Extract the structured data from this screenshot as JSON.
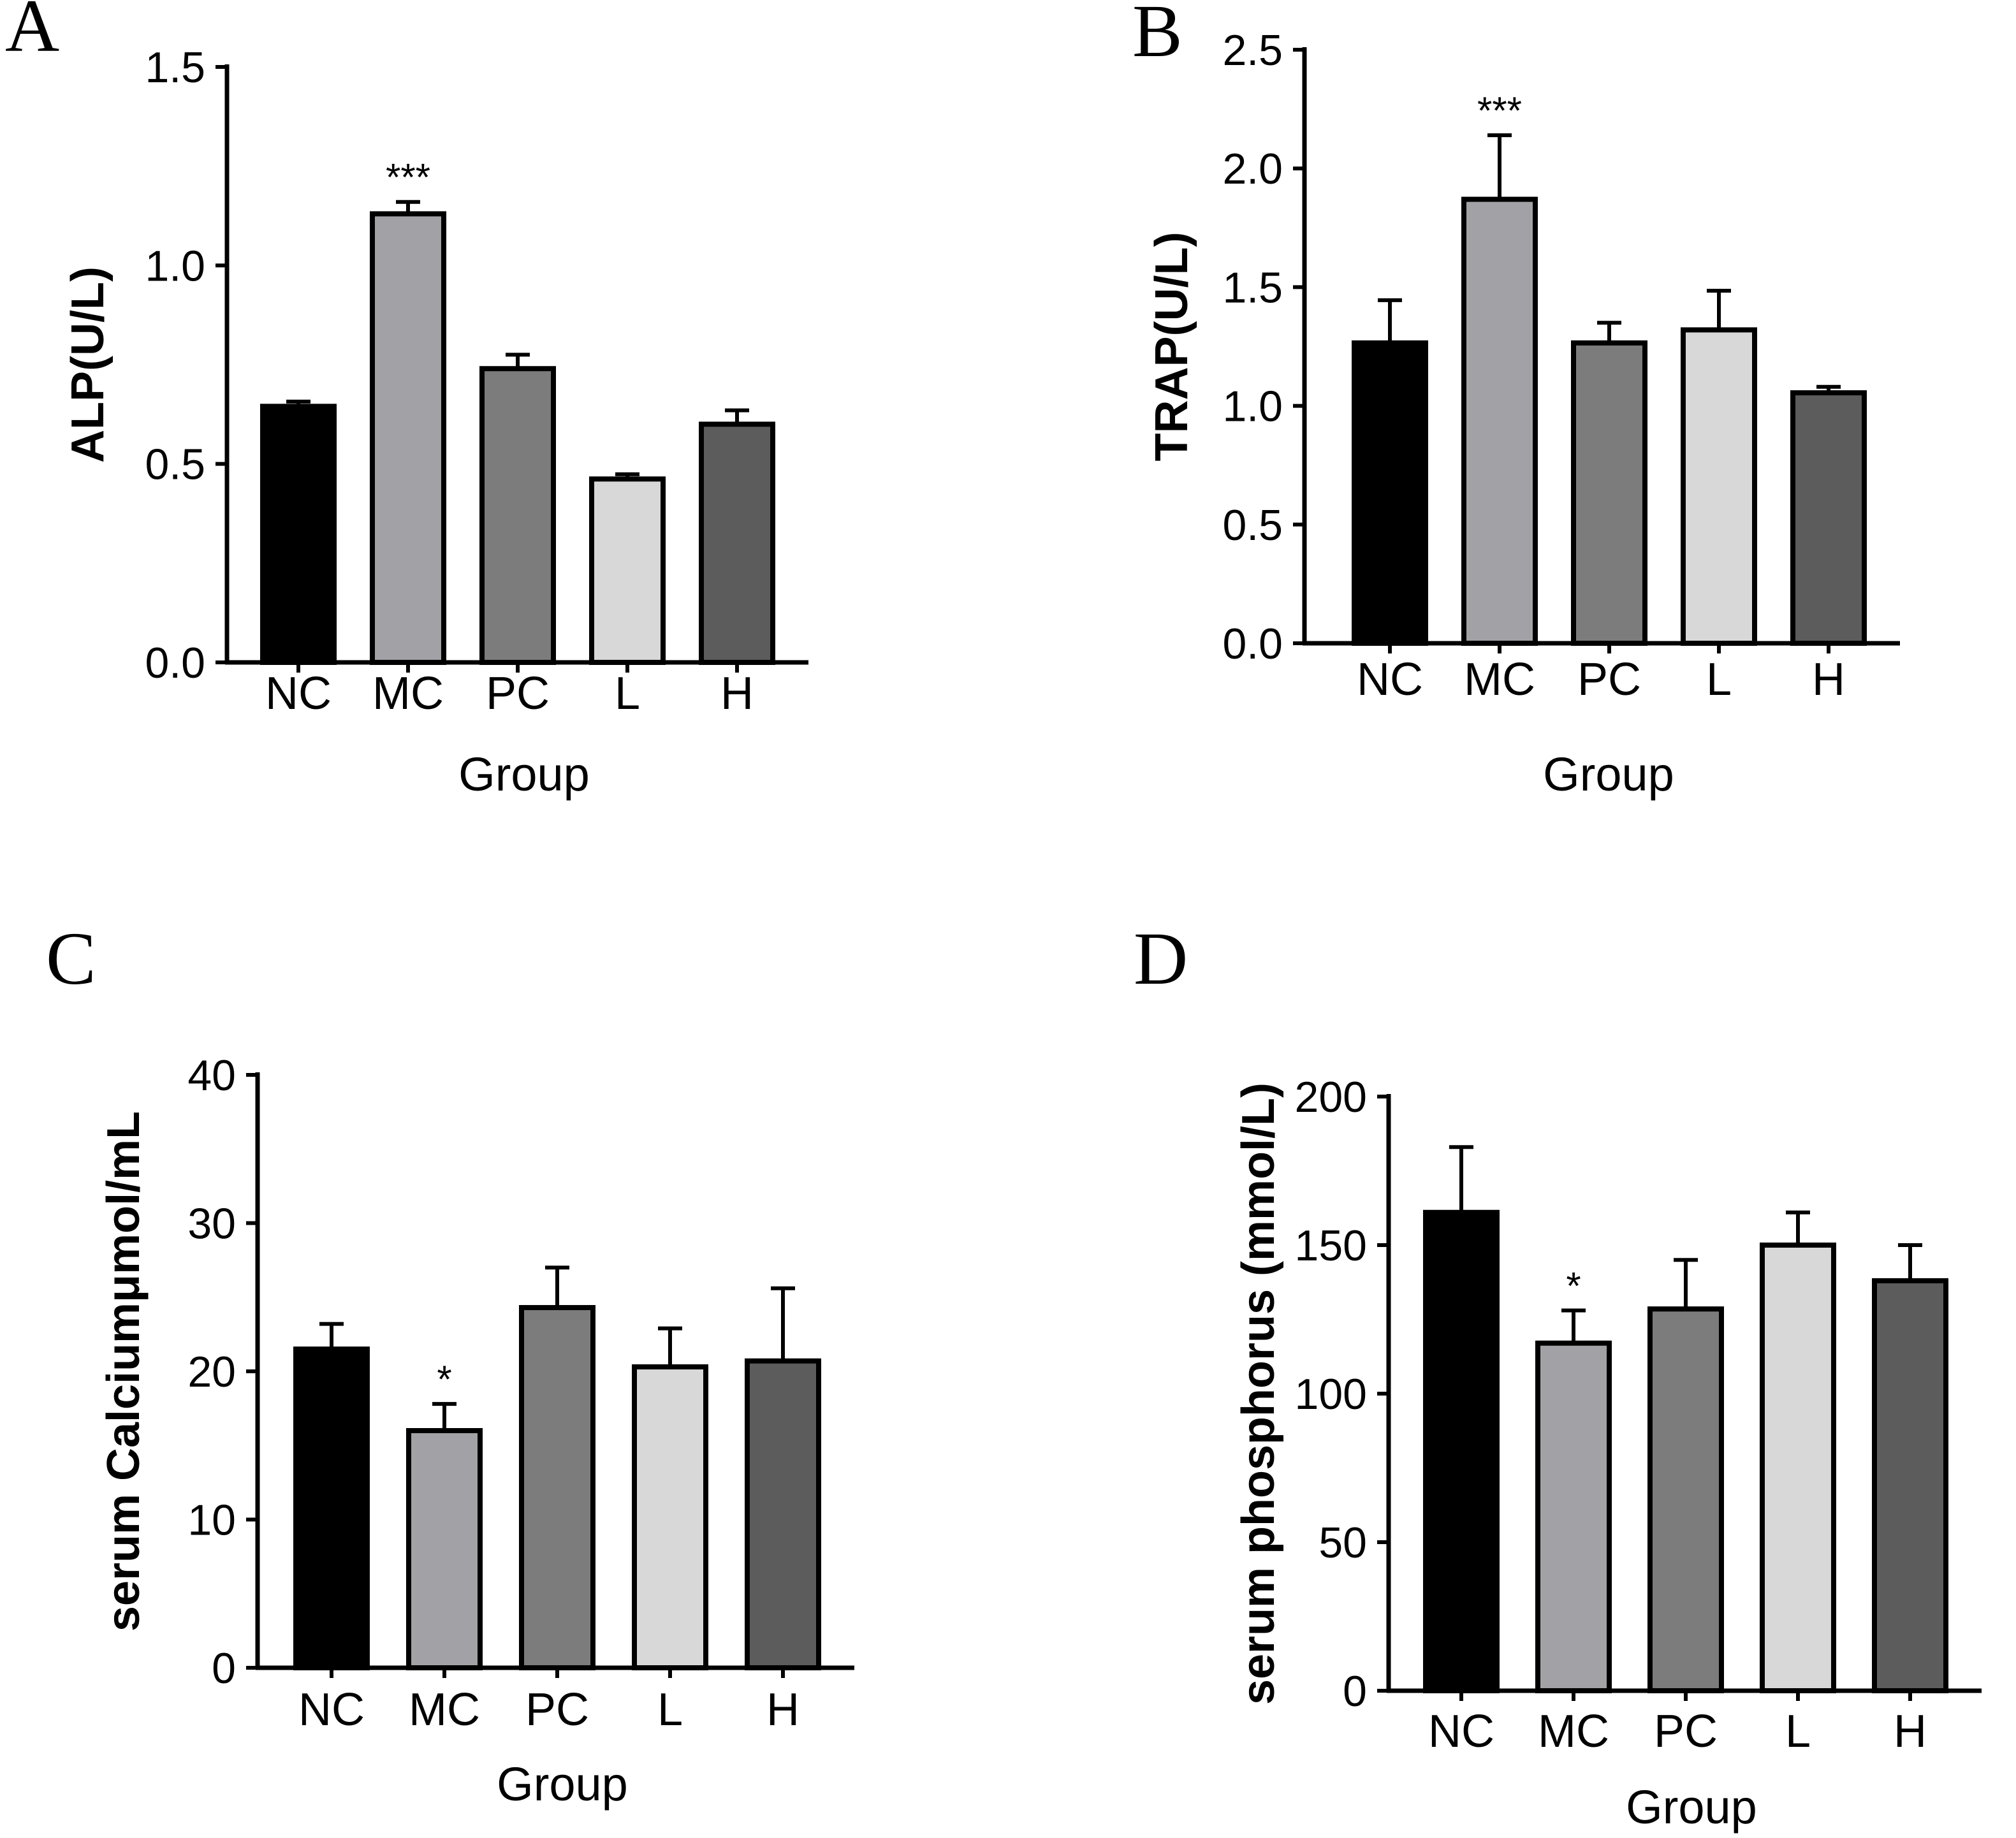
{
  "panels": [
    {
      "label": "A",
      "chart_data": {
        "type": "bar",
        "categories": [
          "NC",
          "MC",
          "PC",
          "L",
          "H"
        ],
        "values": [
          0.645,
          1.13,
          0.74,
          0.462,
          0.6
        ],
        "errors": [
          0.012,
          0.03,
          0.035,
          0.012,
          0.035
        ],
        "significance": [
          "",
          "***",
          "",
          "",
          ""
        ],
        "colors": [
          "#000000",
          "#a1a1a6",
          "#7c7c7c",
          "#d8d8d8",
          "#5c5c5c"
        ],
        "title": "",
        "xlabel": "Group",
        "ylabel": "ALP(U/L)",
        "ylim": [
          0,
          1.5
        ],
        "yticks": [
          0.0,
          0.5,
          1.0,
          1.5
        ],
        "ytick_labels": [
          "0.0",
          "0.5",
          "1.0",
          "1.5"
        ]
      }
    },
    {
      "label": "B",
      "chart_data": {
        "type": "bar",
        "categories": [
          "NC",
          "MC",
          "PC",
          "L",
          "H"
        ],
        "values": [
          1.265,
          1.87,
          1.265,
          1.32,
          1.055
        ],
        "errors": [
          0.18,
          0.27,
          0.085,
          0.165,
          0.025
        ],
        "significance": [
          "",
          "***",
          "",
          "",
          ""
        ],
        "colors": [
          "#000000",
          "#a1a1a6",
          "#7c7c7c",
          "#d8d8d8",
          "#5c5c5c"
        ],
        "title": "",
        "xlabel": "Group",
        "ylabel": "TRAP(U/L)",
        "ylim": [
          0,
          2.5
        ],
        "yticks": [
          0.0,
          0.5,
          1.0,
          1.5,
          2.0,
          2.5
        ],
        "ytick_labels": [
          "0.0",
          "0.5",
          "1.0",
          "1.5",
          "2.0",
          "2.5"
        ]
      }
    },
    {
      "label": "C",
      "chart_data": {
        "type": "bar",
        "categories": [
          "NC",
          "MC",
          "PC",
          "L",
          "H"
        ],
        "values": [
          21.5,
          16.0,
          24.3,
          20.3,
          20.7
        ],
        "errors": [
          1.7,
          1.8,
          2.7,
          2.6,
          4.9
        ],
        "significance": [
          "",
          "*",
          "",
          "",
          ""
        ],
        "colors": [
          "#000000",
          "#a1a1a6",
          "#7c7c7c",
          "#d8d8d8",
          "#5c5c5c"
        ],
        "title": "",
        "xlabel": "Group",
        "ylabel": "serum Calciumμmol/mL",
        "ylim": [
          0,
          40
        ],
        "yticks": [
          0,
          10,
          20,
          30,
          40
        ],
        "ytick_labels": [
          "0",
          "10",
          "20",
          "30",
          "40"
        ]
      }
    },
    {
      "label": "D",
      "chart_data": {
        "type": "bar",
        "categories": [
          "NC",
          "MC",
          "PC",
          "L",
          "H"
        ],
        "values": [
          161,
          117,
          128.5,
          150,
          138
        ],
        "errors": [
          22,
          11,
          16.5,
          11,
          12
        ],
        "significance": [
          "",
          "*",
          "",
          "",
          ""
        ],
        "colors": [
          "#000000",
          "#a1a1a6",
          "#7c7c7c",
          "#d8d8d8",
          "#5c5c5c"
        ],
        "title": "",
        "xlabel": "Group",
        "ylabel": "serum  phosphorus (mmol/L)",
        "ylim": [
          0,
          200
        ],
        "yticks": [
          0,
          50,
          100,
          150,
          200
        ],
        "ytick_labels": [
          "0",
          "50",
          "100",
          "150",
          "200"
        ]
      }
    }
  ]
}
